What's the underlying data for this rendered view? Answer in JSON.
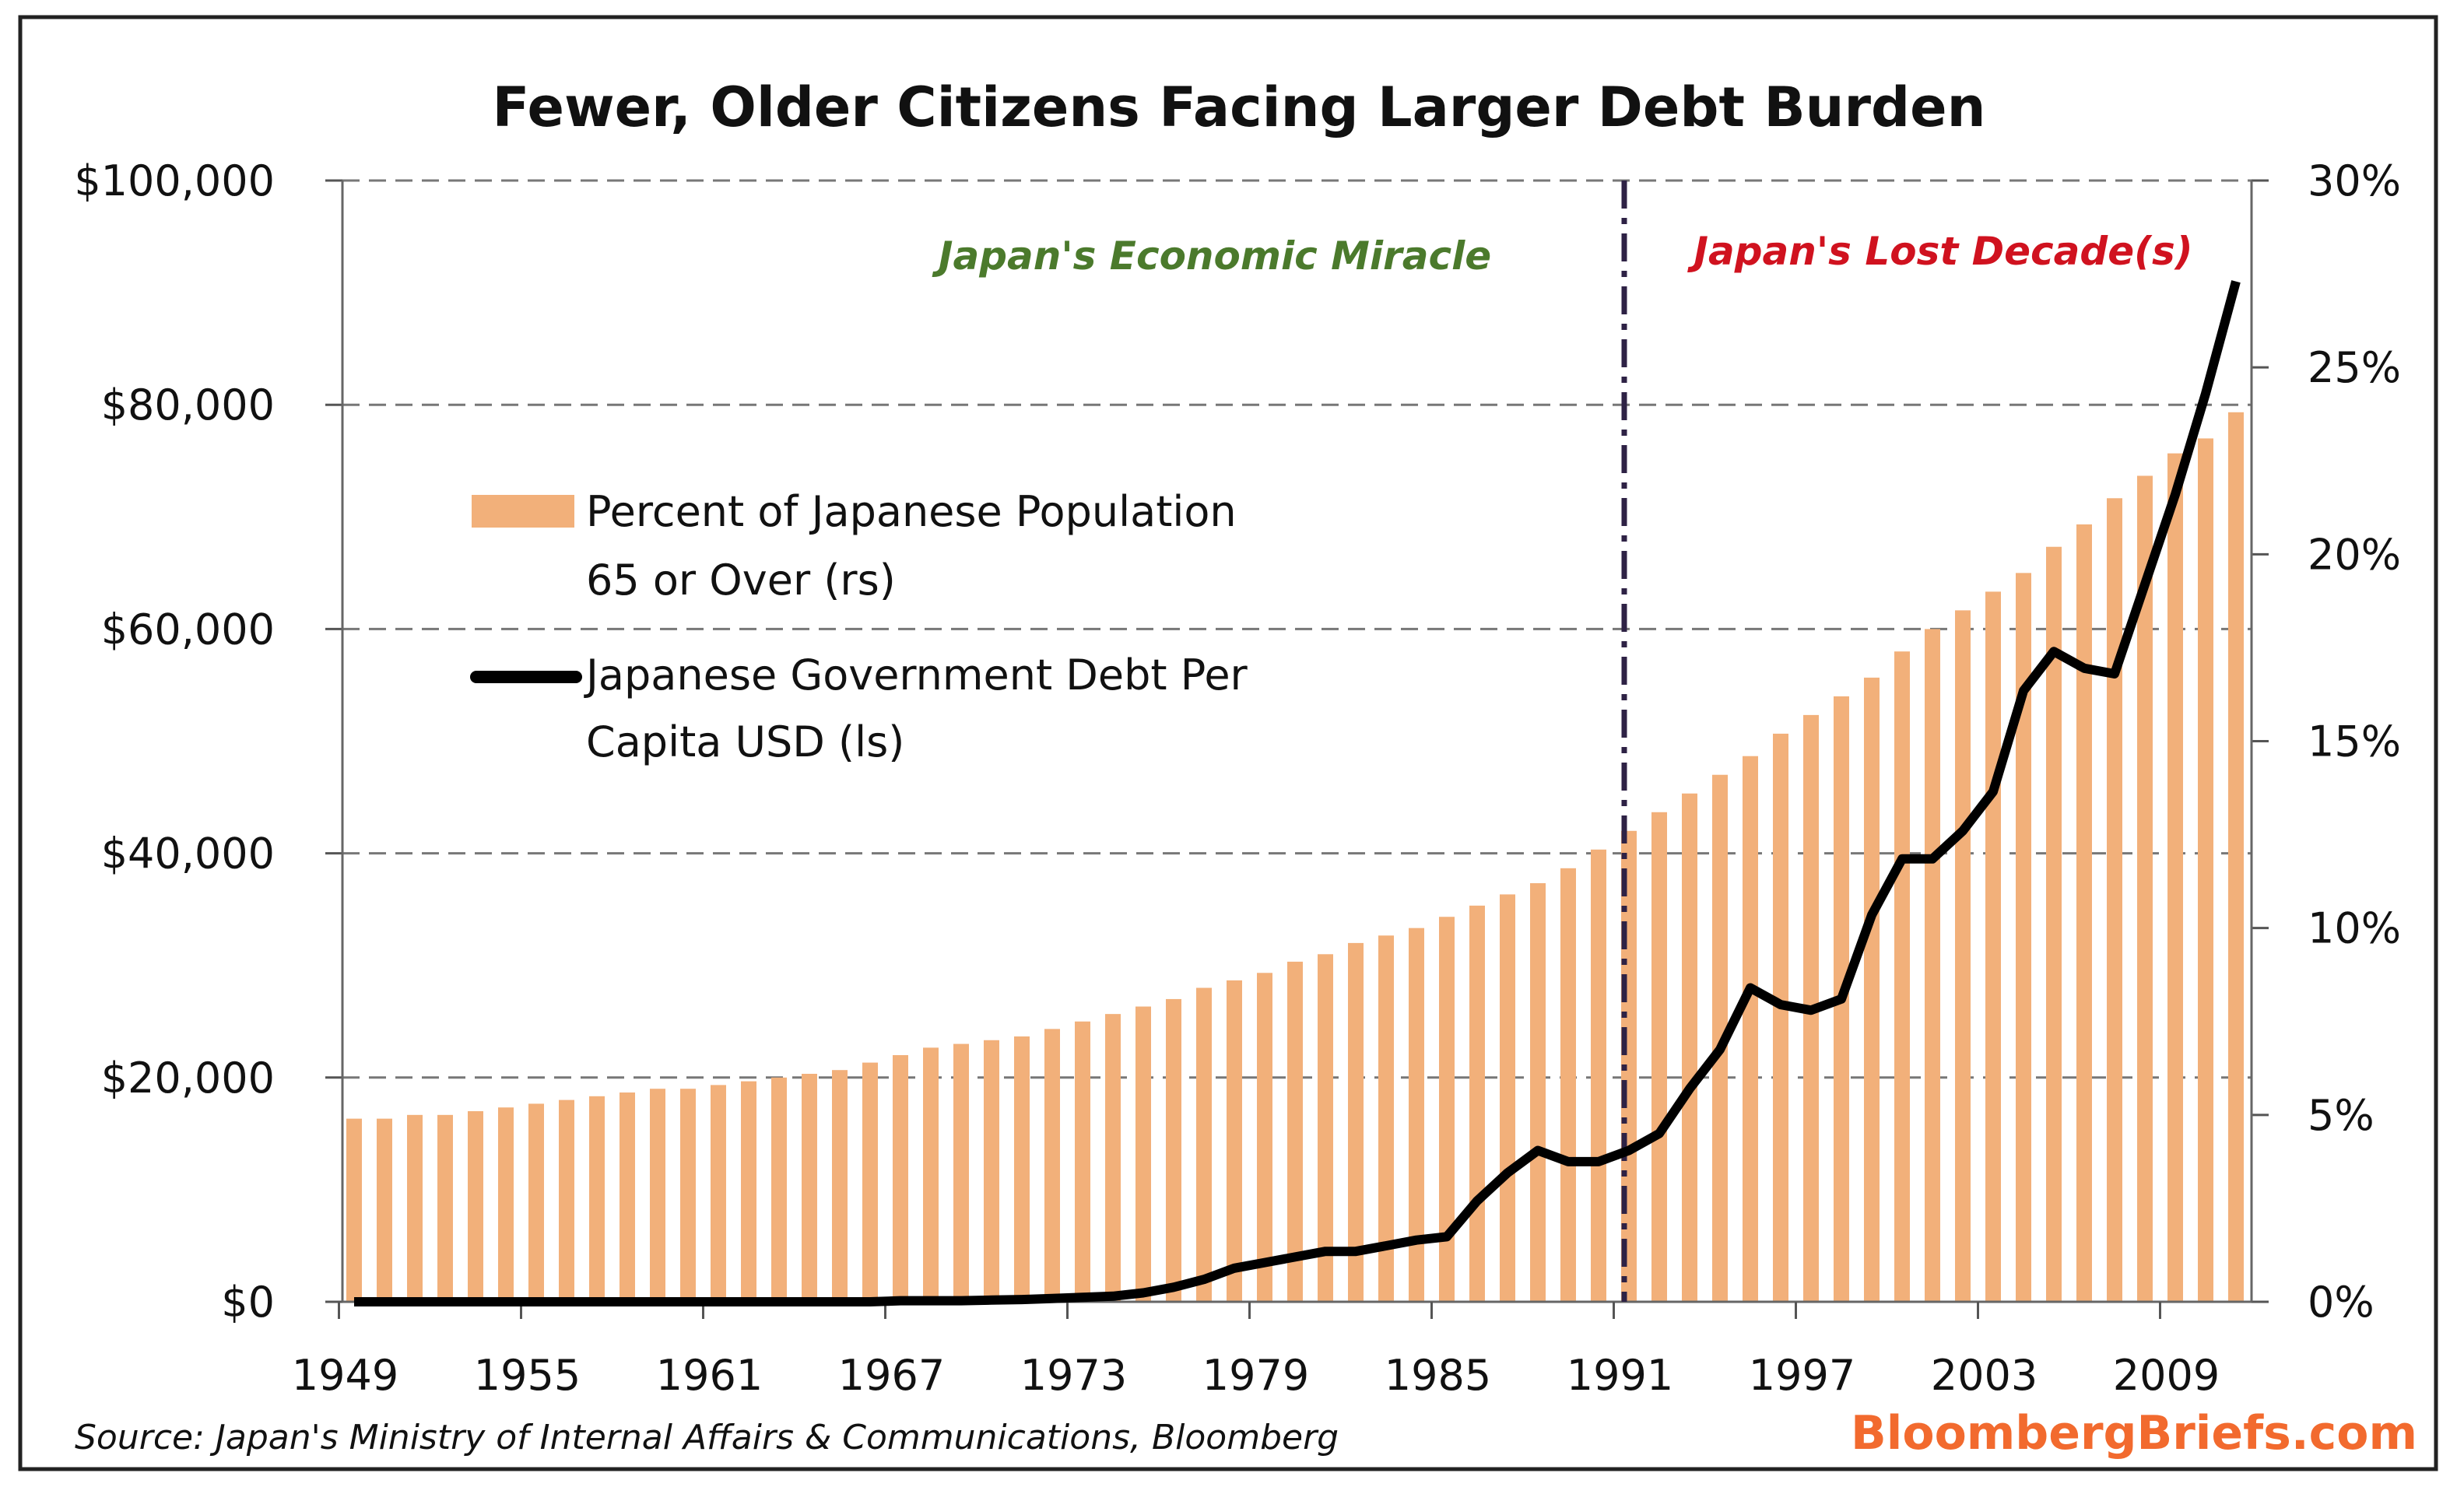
{
  "chart_data": {
    "type": "bar+line",
    "title": "Fewer, Older Citizens Facing Larger Debt Burden",
    "x": [
      1949,
      1950,
      1951,
      1952,
      1953,
      1954,
      1955,
      1956,
      1957,
      1958,
      1959,
      1960,
      1961,
      1962,
      1963,
      1964,
      1965,
      1966,
      1967,
      1968,
      1969,
      1970,
      1971,
      1972,
      1973,
      1974,
      1975,
      1976,
      1977,
      1978,
      1979,
      1980,
      1981,
      1982,
      1983,
      1984,
      1985,
      1986,
      1987,
      1988,
      1989,
      1990,
      1991,
      1992,
      1993,
      1994,
      1995,
      1996,
      1997,
      1998,
      1999,
      2000,
      2001,
      2002,
      2003,
      2004,
      2005,
      2006,
      2007,
      2008,
      2009,
      2010,
      2011
    ],
    "x_tick_labels": [
      "1949",
      "1955",
      "1961",
      "1967",
      "1973",
      "1979",
      "1985",
      "1991",
      "1997",
      "2003",
      "2009"
    ],
    "left_axis": {
      "label": "Japanese Government Debt Per Capita USD",
      "ylim": [
        0,
        100000
      ],
      "tick_labels": [
        "$0",
        "$20,000",
        "$40,000",
        "$60,000",
        "$80,000",
        "$100,000"
      ]
    },
    "right_axis": {
      "label": "Percent of Japanese Population 65 or Over",
      "ylim": [
        0,
        30
      ],
      "tick_labels": [
        "0%",
        "5%",
        "10%",
        "15%",
        "20%",
        "25%",
        "30%"
      ]
    },
    "grid": "horizontal dashed at left-axis ticks",
    "series": [
      {
        "name": "Percent of Japanese Population 65 or Over (rs)",
        "type": "bar",
        "axis": "right",
        "color": "#f2b07a",
        "values": [
          4.9,
          4.9,
          5.0,
          5.0,
          5.1,
          5.2,
          5.3,
          5.4,
          5.5,
          5.6,
          5.7,
          5.7,
          5.8,
          5.9,
          6.0,
          6.1,
          6.2,
          6.4,
          6.6,
          6.8,
          6.9,
          7.0,
          7.1,
          7.3,
          7.5,
          7.7,
          7.9,
          8.1,
          8.4,
          8.6,
          8.8,
          9.1,
          9.3,
          9.6,
          9.8,
          10.0,
          10.3,
          10.6,
          10.9,
          11.2,
          11.6,
          12.1,
          12.6,
          13.1,
          13.6,
          14.1,
          14.6,
          15.2,
          15.7,
          16.2,
          16.7,
          17.4,
          18.0,
          18.5,
          19.0,
          19.5,
          20.2,
          20.8,
          21.5,
          22.1,
          22.7,
          23.1,
          23.8
        ]
      },
      {
        "name": "Japanese Government Debt Per Capita USD (ls)",
        "type": "line",
        "axis": "left",
        "color": "#000000",
        "values": [
          0,
          0,
          0,
          0,
          0,
          0,
          0,
          0,
          0,
          0,
          0,
          0,
          0,
          0,
          0,
          0,
          0,
          0,
          100,
          100,
          100,
          150,
          200,
          300,
          400,
          500,
          800,
          1300,
          2000,
          3000,
          3500,
          4000,
          4500,
          4500,
          5000,
          5500,
          5800,
          9000,
          11500,
          13500,
          12500,
          12500,
          13500,
          15000,
          19000,
          22500,
          28000,
          26500,
          26000,
          27000,
          34500,
          39500,
          39500,
          42000,
          45500,
          54500,
          58000,
          56500,
          56000,
          64000,
          72000,
          81000,
          91000
        ]
      }
    ],
    "legend": {
      "placement": "upper-left inside",
      "bar_label_lines": [
        "Percent of Japanese Population",
        "65 or Over (rs)"
      ],
      "line_label_lines": [
        "Japanese Government Debt Per",
        "Capita USD (ls)"
      ]
    },
    "annotations": {
      "divider_year": 1991,
      "left_era": "Japan's Economic Miracle",
      "right_era": "Japan's Lost Decade(s)",
      "left_era_color": "#4b7a2c",
      "right_era_color": "#d0121f"
    },
    "source": "Source: Japan's Ministry of Internal Affairs & Communications, Bloomberg",
    "brand": "BloombergBriefs.com",
    "brand_color": "#f26a2e"
  }
}
